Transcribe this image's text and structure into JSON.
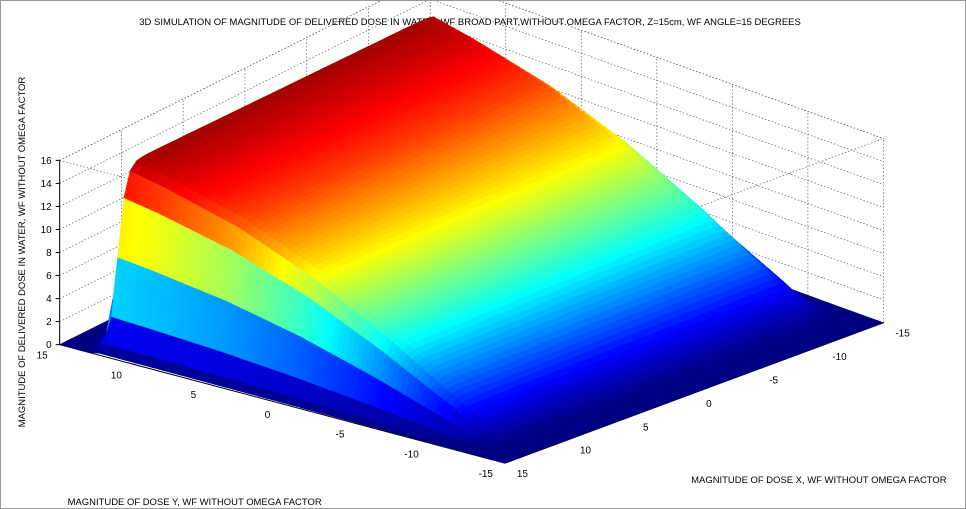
{
  "chart_data": {
    "type": "surface3d",
    "title": "3D SIMULATION OF MAGNITUDE OF DELIVERED DOSE IN WATER, WF BROAD PART,WITHOUT OMEGA FACTOR, Z=15cm, WF ANGLE=15 DEGREES",
    "xlabel": "MAGNITUDE OF DOSE X, WF WITHOUT OMEGA FACTOR",
    "ylabel": "MAGNITUDE OF DOSE Y, WF WITHOUT OMEGA FACTOR",
    "zlabel": "MAGNITUDE OF DELIVERED DOSE IN WATER, WF WITHOUT OMEGA FACTOR",
    "xlim": [
      -15,
      15
    ],
    "ylim": [
      -15,
      15
    ],
    "zlim": [
      0,
      16
    ],
    "x_ticks": [
      -15,
      -10,
      -5,
      0,
      5,
      10,
      15
    ],
    "y_ticks": [
      -15,
      -10,
      -5,
      0,
      5,
      10,
      15
    ],
    "z_ticks": [
      0,
      2,
      4,
      6,
      8,
      10,
      12,
      14,
      16
    ],
    "colormap": "jet",
    "grid": true,
    "field_edge_y": 12.5,
    "edge_x": 13.5,
    "y_samples": [
      -12.5,
      -10,
      -5,
      0,
      5,
      10,
      12.5
    ],
    "dose_at_y": [
      0.3,
      2.6,
      6.7,
      10.3,
      13.0,
      14.8,
      15.5
    ]
  }
}
